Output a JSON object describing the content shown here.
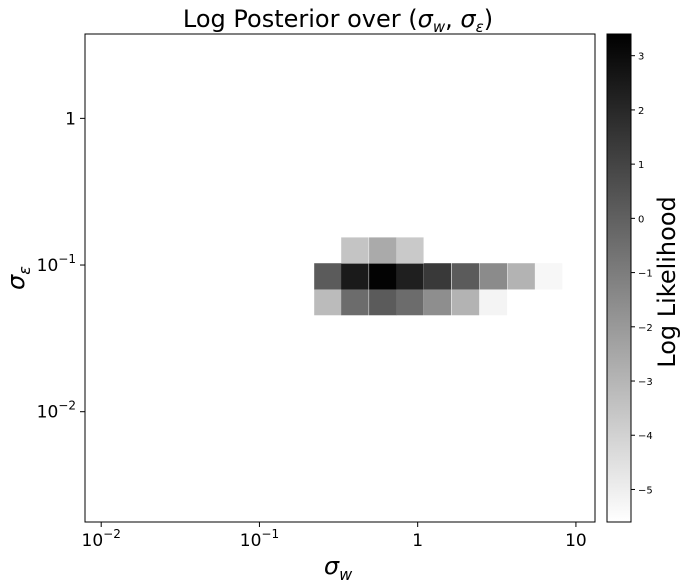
{
  "chart_data": {
    "type": "heatmap",
    "title_parts": {
      "prefix": "Log Posterior over (",
      "x_sym": "σ",
      "x_sub": "w",
      "sep": ", ",
      "y_sym": "σ",
      "y_sub": "ε",
      "suffix": ")"
    },
    "xlabel": {
      "sym": "σ",
      "sub": "w"
    },
    "ylabel": {
      "sym": "σ",
      "sub": "ε"
    },
    "x_scale": "log",
    "y_scale": "log",
    "xlim": [
      0.0079,
      13.2
    ],
    "ylim": [
      0.00177,
      3.76
    ],
    "x_ticks": [
      {
        "value": 0.01,
        "base": "10",
        "exp": "−2"
      },
      {
        "value": 0.1,
        "base": "10",
        "exp": "−1"
      },
      {
        "value": 1,
        "base": "1",
        "exp": ""
      },
      {
        "value": 10,
        "base": "10",
        "exp": ""
      }
    ],
    "y_ticks": [
      {
        "value": 0.01,
        "base": "10",
        "exp": "−2"
      },
      {
        "value": 0.1,
        "base": "10",
        "exp": "−1"
      },
      {
        "value": 1,
        "base": "1",
        "exp": ""
      }
    ],
    "cells_x": [
      0.27,
      0.4,
      0.6,
      0.89,
      1.33,
      2.0,
      3.0,
      4.5,
      6.7
    ],
    "cells_y": [
      0.056,
      0.084,
      0.126
    ],
    "values": [
      [
        -3.2,
        -0.4,
        0.2,
        -0.4,
        -1.6,
        -2.9,
        -5.2,
        null,
        null
      ],
      [
        0.2,
        2.5,
        3.3,
        2.3,
        1.4,
        0.2,
        -1.5,
        -2.9,
        -5.3
      ],
      [
        null,
        -3.5,
        -2.6,
        -3.7,
        null,
        null,
        null,
        null,
        null
      ]
    ],
    "colorbar": {
      "label": "Log Likelihood",
      "range": [
        -5.6,
        3.4
      ],
      "ticks": [
        "3",
        "2",
        "1",
        "0",
        "−1",
        "−2",
        "−3",
        "−4",
        "−5"
      ],
      "tick_values": [
        3,
        2,
        1,
        0,
        -1,
        -2,
        -3,
        -4,
        -5
      ],
      "colormap": "gray_r"
    },
    "grid": false
  }
}
